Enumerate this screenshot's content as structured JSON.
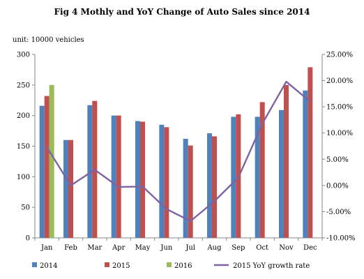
{
  "chart_data": {
    "type": "bar",
    "title": "Fig 4  Mothly and YoY Change of Auto Sales since 2014",
    "unit_label": "unit: 10000 vehicles",
    "categories": [
      "Jan",
      "Feb",
      "Mar",
      "Apr",
      "May",
      "Jun",
      "Jul",
      "Aug",
      "Sep",
      "Oct",
      "Nov",
      "Dec"
    ],
    "series": [
      {
        "name": "2014",
        "type": "bar",
        "axis": "left",
        "color": "#4F81BD",
        "values": [
          216,
          160,
          217,
          200,
          191,
          185,
          162,
          171,
          198,
          198,
          209,
          241
        ]
      },
      {
        "name": "2015",
        "type": "bar",
        "axis": "left",
        "color": "#C0504D",
        "values": [
          232,
          160,
          224,
          200,
          190,
          181,
          151,
          166,
          202,
          222,
          250,
          279
        ]
      },
      {
        "name": "2016",
        "type": "bar",
        "axis": "left",
        "color": "#9BBB59",
        "values": [
          250,
          null,
          null,
          null,
          null,
          null,
          null,
          null,
          null,
          null,
          null,
          null
        ]
      },
      {
        "name": "2015 YoY growth rate",
        "type": "line",
        "axis": "right",
        "color": "#7F62A3",
        "values": [
          7.3,
          0.0,
          3.0,
          -0.3,
          -0.2,
          -4.5,
          -6.8,
          -3.0,
          1.5,
          11.8,
          19.8,
          16.0
        ]
      }
    ],
    "y_left": {
      "min": 0,
      "max": 300,
      "ticks": [
        "0",
        "50",
        "100",
        "150",
        "200",
        "250",
        "300"
      ]
    },
    "y_right": {
      "min": -10,
      "max": 25,
      "ticks": [
        "-10.00%",
        "-5.00%",
        "0.00%",
        "5.00%",
        "10.00%",
        "15.00%",
        "20.00%",
        "25.00%"
      ]
    },
    "grid": false,
    "legend_position": "bottom"
  }
}
